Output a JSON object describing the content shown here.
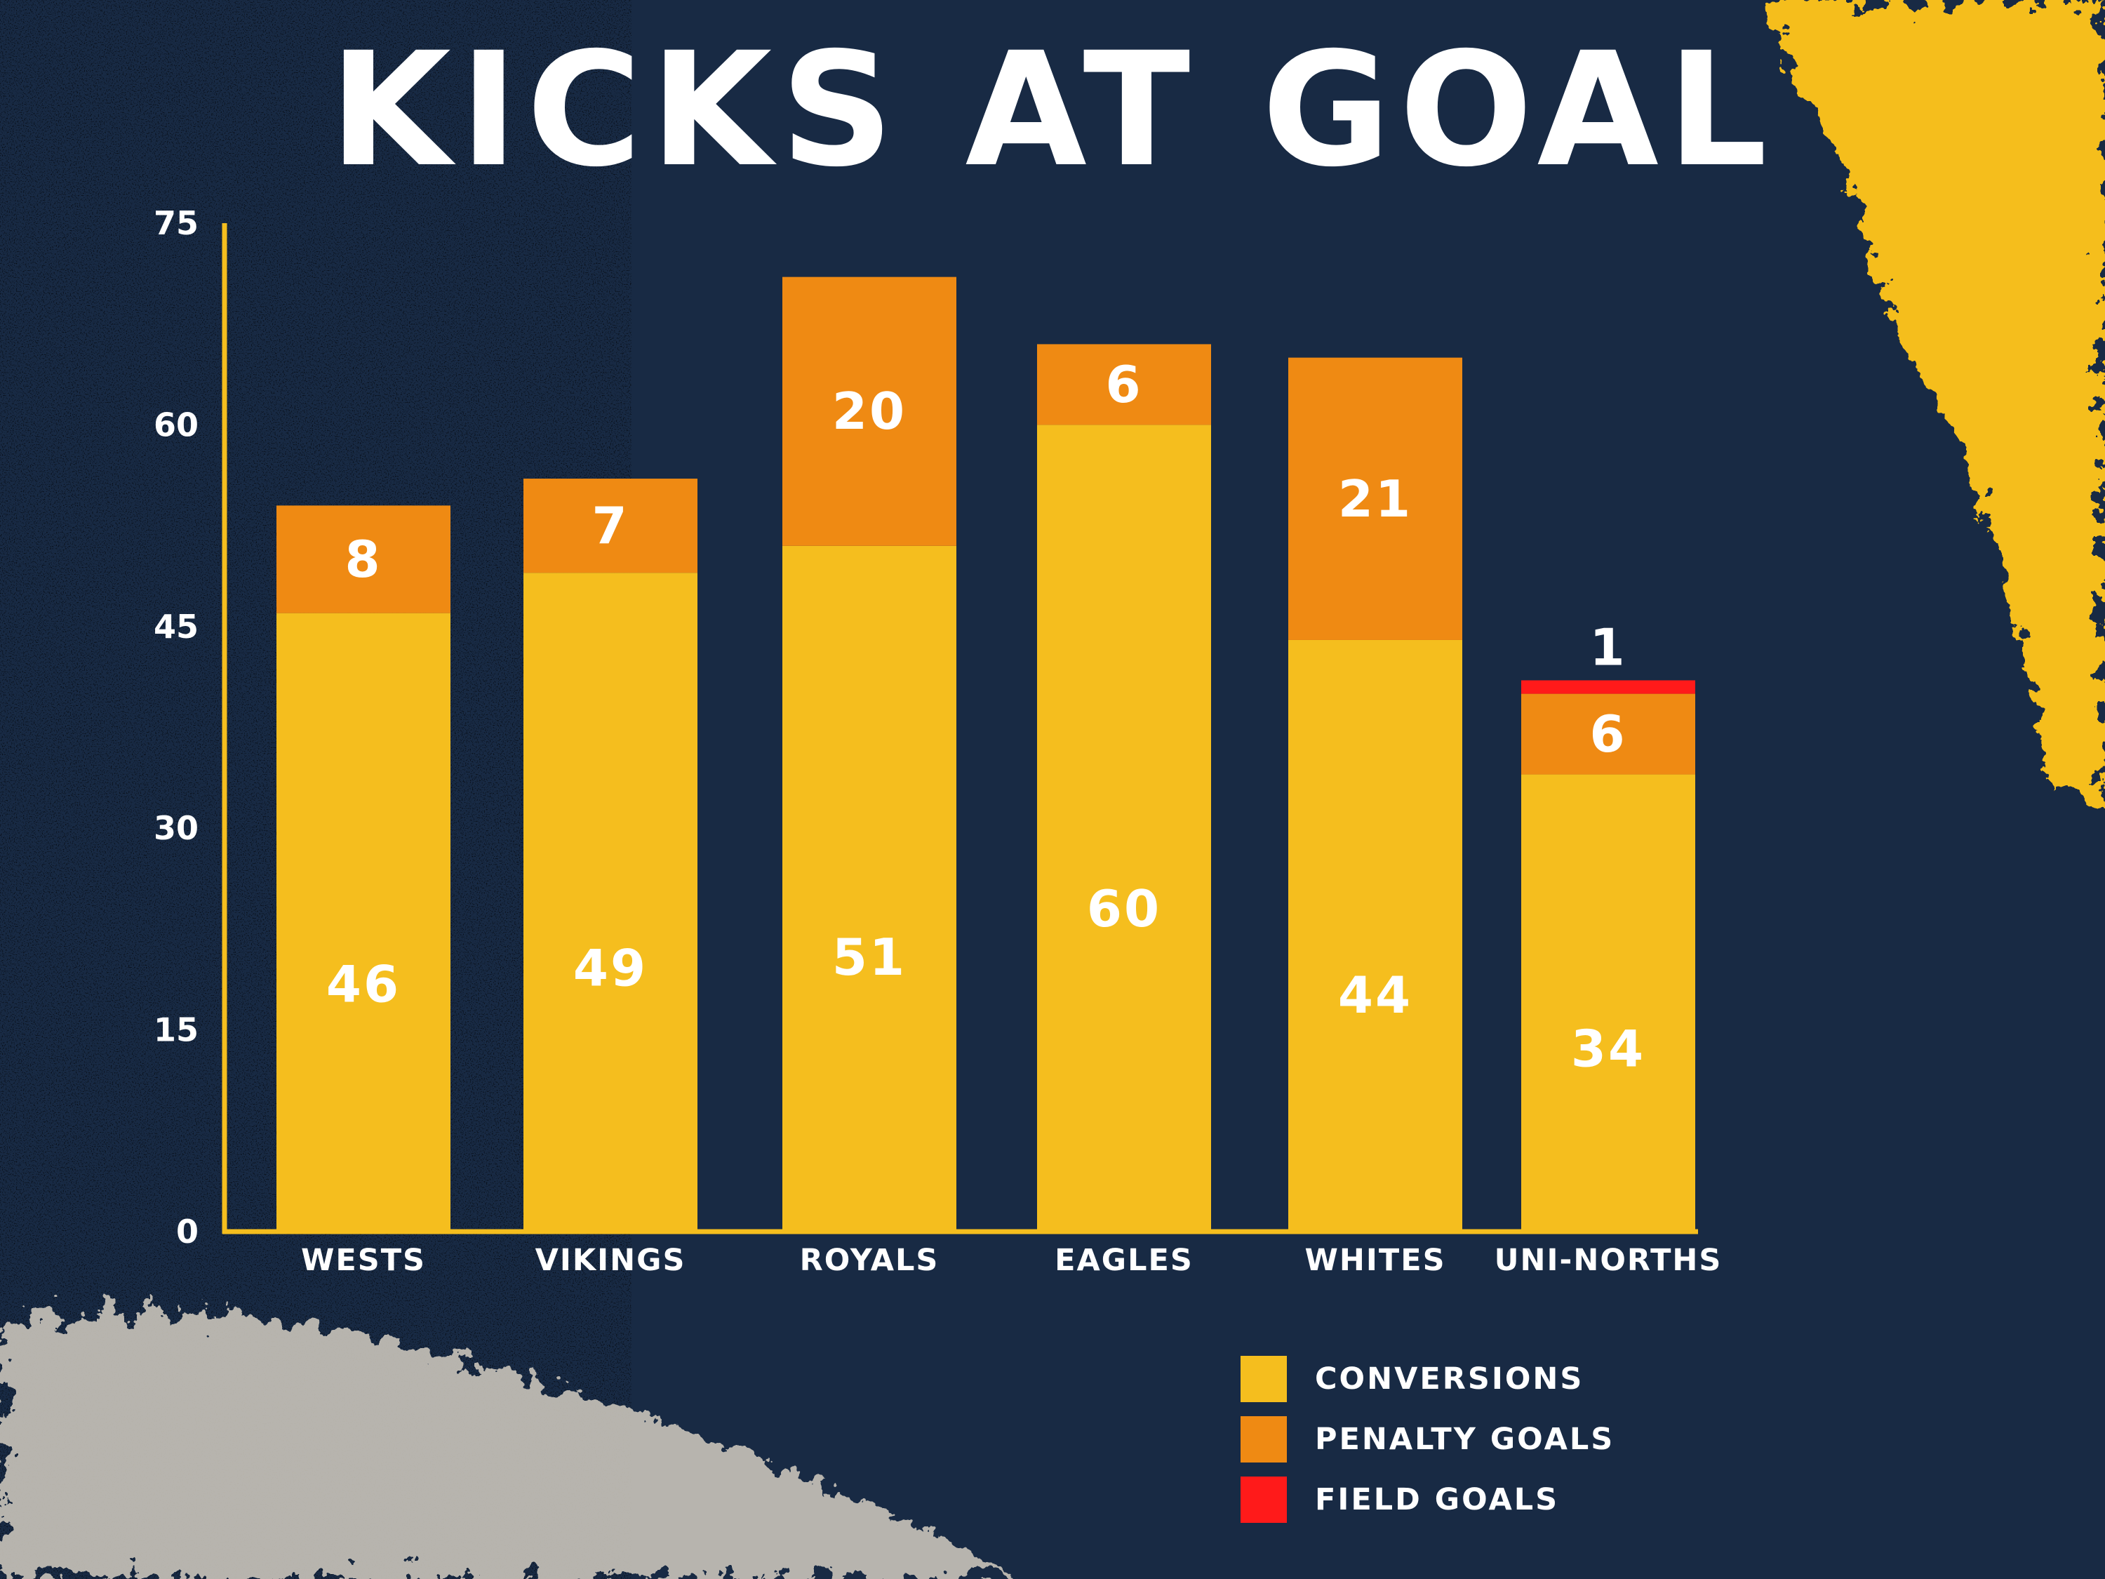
{
  "title": "KICKS AT GOAL",
  "colors": {
    "background": "#182a44",
    "axis": "#f5be1e",
    "conversions": "#f5be1e",
    "penalty_goals": "#ef8a13",
    "field_goals": "#ff1a1a",
    "text": "#ffffff"
  },
  "chart_data": {
    "type": "bar",
    "stacked": true,
    "title": "KICKS AT GOAL",
    "xlabel": "",
    "ylabel": "",
    "ylim": [
      0,
      75
    ],
    "yticks": [
      0,
      15,
      30,
      45,
      60,
      75
    ],
    "grid": false,
    "legend_position": "bottom-right",
    "categories": [
      "WESTS",
      "VIKINGS",
      "ROYALS",
      "EAGLES",
      "WHITES",
      "UNI-NORTHS"
    ],
    "series": [
      {
        "name": "CONVERSIONS",
        "color": "#f5be1e",
        "values": [
          46,
          49,
          51,
          60,
          44,
          34
        ]
      },
      {
        "name": "PENALTY GOALS",
        "color": "#ef8a13",
        "values": [
          8,
          7,
          20,
          6,
          21,
          6
        ]
      },
      {
        "name": "FIELD GOALS",
        "color": "#ff1a1a",
        "values": [
          0,
          0,
          0,
          0,
          0,
          1
        ]
      }
    ]
  },
  "legend": [
    {
      "label": "CONVERSIONS",
      "color": "#f5be1e"
    },
    {
      "label": "PENALTY GOALS",
      "color": "#ef8a13"
    },
    {
      "label": "FIELD GOALS",
      "color": "#ff1a1a"
    }
  ]
}
